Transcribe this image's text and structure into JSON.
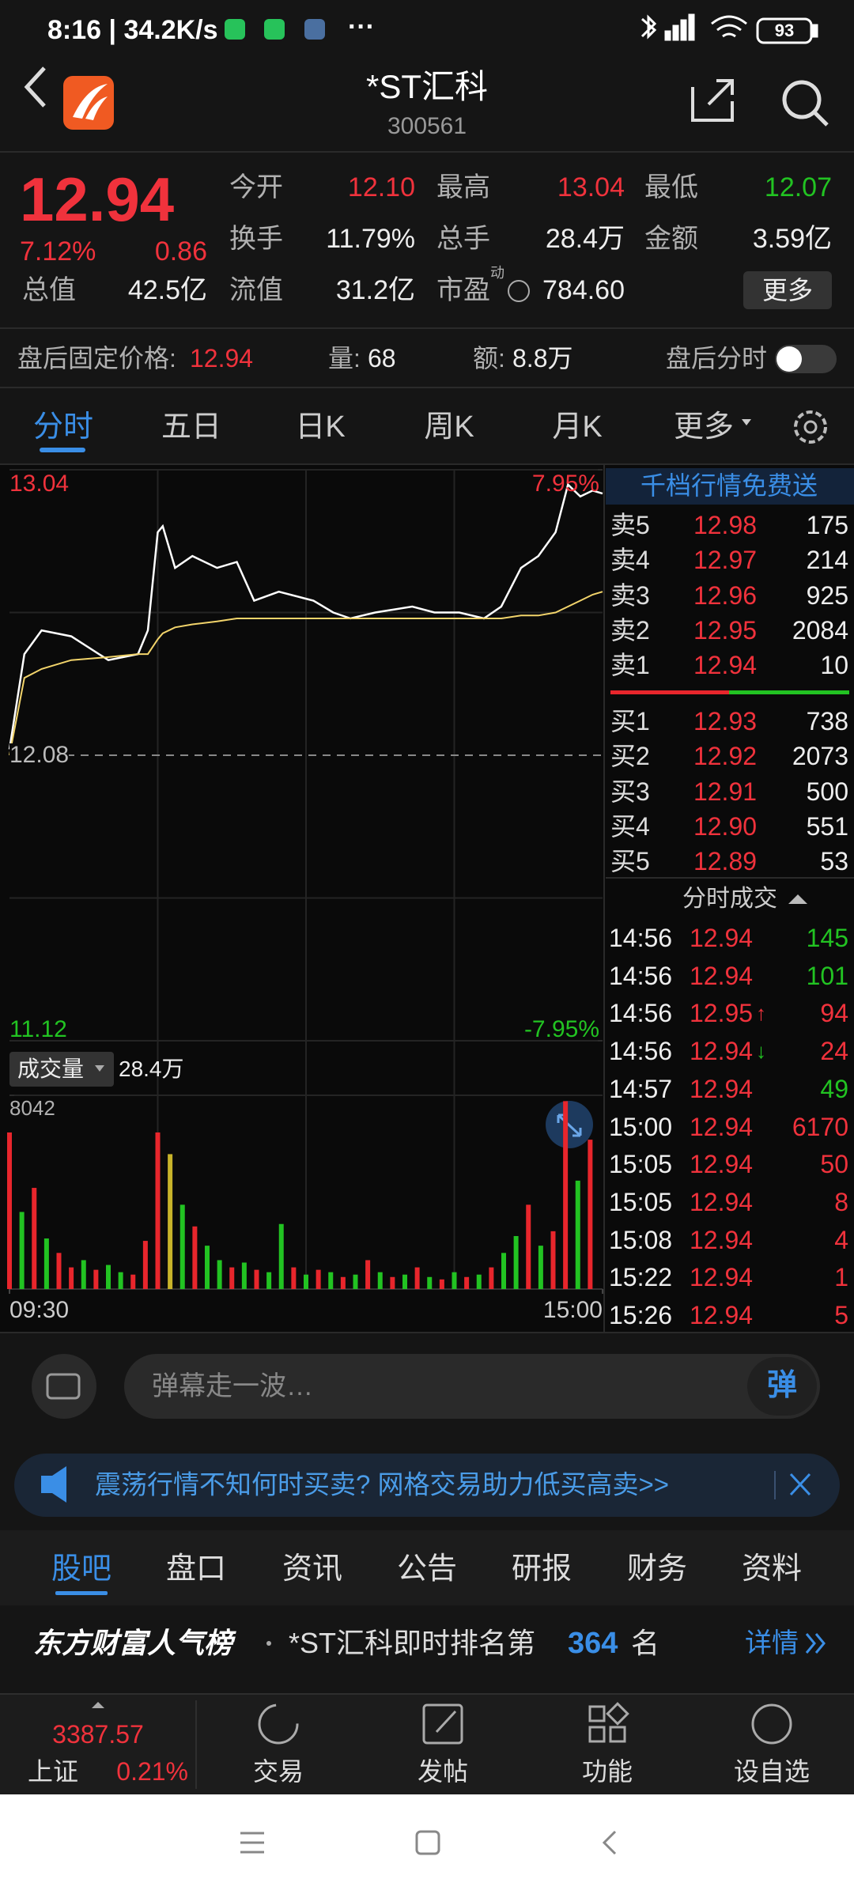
{
  "status_bar": {
    "time": "8:16 | 34.2K/s",
    "more": "···",
    "battery": "93"
  },
  "header": {
    "title": "*ST汇科",
    "code": "300561"
  },
  "quote": {
    "price": "12.94",
    "change_pct": "7.12%",
    "change": "0.86",
    "market_cap_label": "总值",
    "market_cap": "42.5亿",
    "fields": [
      {
        "label": "今开",
        "value": "12.10",
        "color": "#f0323c"
      },
      {
        "label": "最高",
        "value": "13.04",
        "color": "#f0323c"
      },
      {
        "label": "最低",
        "value": "12.07",
        "color": "#22c322"
      },
      {
        "label": "换手",
        "value": "11.79%",
        "color": "#eeeeee"
      },
      {
        "label": "总手",
        "value": "28.4万",
        "color": "#eeeeee"
      },
      {
        "label": "金额",
        "value": "3.59亿",
        "color": "#eeeeee"
      },
      {
        "label": "流值",
        "value": "31.2亿",
        "color": "#eeeeee"
      }
    ],
    "pe_label": "市盈",
    "pe_tag": "动",
    "pe": "784.60",
    "more": "更多"
  },
  "after_hours": {
    "label": "盘后固定价格:",
    "price": "12.94",
    "volume_label": "量:",
    "volume": "68",
    "amount_label": "额:",
    "amount": "8.8万",
    "toggle": "盘后分时"
  },
  "tabs": {
    "items": [
      "分时",
      "五日",
      "日K",
      "周K",
      "月K",
      "更多"
    ],
    "active": 0
  },
  "chart_data": [
    {
      "type": "line",
      "xlim": [
        0,
        240
      ],
      "ylim": [
        11.12,
        13.04
      ],
      "yticks": [
        13.04,
        12.08,
        11.12
      ],
      "ytick_colors": [
        "#f0323c",
        "#bbbbbb",
        "#22c322"
      ],
      "y2lim": [
        -7.95,
        7.95
      ],
      "y2ticks": [
        {
          "value": 7.95,
          "label": "7.95%"
        },
        {
          "value": -7.95,
          "label": "-7.95%"
        }
      ],
      "y2tick_colors": [
        "#f0323c",
        "#22c322"
      ],
      "grid": true,
      "x": [
        0,
        6,
        13,
        25,
        40,
        52,
        56,
        60,
        62,
        67,
        74,
        84,
        92,
        99,
        109,
        123,
        131,
        138,
        148,
        163,
        172,
        182,
        192,
        199,
        207,
        214,
        221,
        226,
        231,
        236,
        240
      ],
      "series": [
        {
          "color": "#ffffff",
          "values": [
            12.1,
            12.42,
            12.5,
            12.48,
            12.4,
            12.42,
            12.5,
            12.83,
            12.85,
            12.71,
            12.75,
            12.71,
            12.73,
            12.6,
            12.63,
            12.6,
            12.56,
            12.54,
            12.56,
            12.58,
            12.56,
            12.56,
            12.54,
            12.58,
            12.71,
            12.75,
            12.83,
            12.99,
            12.95,
            12.97,
            12.96
          ]
        },
        {
          "color": "#f2d46b",
          "values": [
            12.08,
            12.34,
            12.37,
            12.4,
            12.41,
            12.42,
            12.42,
            12.47,
            12.49,
            12.51,
            12.52,
            12.53,
            12.54,
            12.54,
            12.54,
            12.54,
            12.54,
            12.54,
            12.54,
            12.54,
            12.54,
            12.54,
            12.54,
            12.54,
            12.55,
            12.55,
            12.56,
            12.58,
            12.6,
            12.62,
            12.63
          ]
        }
      ]
    },
    {
      "type": "bar",
      "title": "成交量",
      "total": "28.4万",
      "xlim": [
        0,
        240
      ],
      "ylim": [
        0,
        8042
      ],
      "yticks": [
        8042
      ],
      "xticks": [
        {
          "value": 0,
          "label": "09:30"
        },
        {
          "value": 240,
          "label": "15:00"
        }
      ],
      "x": [
        0,
        5,
        10,
        15,
        20,
        25,
        30,
        35,
        40,
        45,
        50,
        55,
        60,
        65,
        70,
        75,
        80,
        85,
        90,
        95,
        100,
        105,
        110,
        115,
        120,
        125,
        130,
        135,
        140,
        145,
        150,
        155,
        160,
        165,
        170,
        175,
        180,
        185,
        190,
        195,
        200,
        205,
        210,
        215,
        220,
        225,
        230,
        235
      ],
      "values": [
        6500,
        3200,
        4200,
        2100,
        1500,
        900,
        1200,
        800,
        1000,
        700,
        600,
        2000,
        6500,
        5600,
        3500,
        2600,
        1800,
        1200,
        900,
        1100,
        800,
        700,
        2700,
        900,
        600,
        800,
        700,
        500,
        600,
        1200,
        700,
        500,
        600,
        900,
        500,
        400,
        700,
        500,
        600,
        900,
        1500,
        2200,
        3500,
        1800,
        2400,
        7800,
        4500,
        6200
      ],
      "colors": [
        "#e8262c",
        "#22c322",
        "#e8262c",
        "#22c322",
        "#e8262c",
        "#e8262c",
        "#22c322",
        "#e8262c",
        "#22c322",
        "#22c322",
        "#e8262c",
        "#e8262c",
        "#e8262c",
        "#c8b42a",
        "#22c322",
        "#e8262c",
        "#22c322",
        "#22c322",
        "#e8262c",
        "#22c322",
        "#e8262c",
        "#22c322",
        "#22c322",
        "#e8262c",
        "#22c322",
        "#e8262c",
        "#22c322",
        "#e8262c",
        "#22c322",
        "#e8262c",
        "#22c322",
        "#e8262c",
        "#22c322",
        "#e8262c",
        "#22c322",
        "#e8262c",
        "#22c322",
        "#e8262c",
        "#22c322",
        "#e8262c",
        "#22c322",
        "#22c322",
        "#e8262c",
        "#22c322",
        "#e8262c",
        "#e8262c",
        "#22c322",
        "#e8262c"
      ]
    }
  ],
  "order_book": {
    "title": "千档行情免费送",
    "asks": [
      {
        "label": "卖5",
        "price": "12.98",
        "volume": "175"
      },
      {
        "label": "卖4",
        "price": "12.97",
        "volume": "214"
      },
      {
        "label": "卖3",
        "price": "12.96",
        "volume": "925"
      },
      {
        "label": "卖2",
        "price": "12.95",
        "volume": "2084"
      },
      {
        "label": "卖1",
        "price": "12.94",
        "volume": "10"
      }
    ],
    "bids": [
      {
        "label": "买1",
        "price": "12.93",
        "volume": "738"
      },
      {
        "label": "买2",
        "price": "12.92",
        "volume": "2073"
      },
      {
        "label": "买3",
        "price": "12.91",
        "volume": "500"
      },
      {
        "label": "买4",
        "price": "12.90",
        "volume": "551"
      },
      {
        "label": "买5",
        "price": "12.89",
        "volume": "53"
      }
    ],
    "trades_title": "分时成交",
    "trades": [
      {
        "time": "14:56",
        "price": "12.94",
        "volume": "145",
        "color": "#22c322"
      },
      {
        "time": "14:56",
        "price": "12.94",
        "volume": "101",
        "color": "#22c322"
      },
      {
        "time": "14:56",
        "price": "12.95",
        "arrow": "↑",
        "arrow_color": "#f0323c",
        "volume": "94",
        "color": "#f0323c"
      },
      {
        "time": "14:56",
        "price": "12.94",
        "arrow": "↓",
        "arrow_color": "#22c322",
        "volume": "24",
        "color": "#f0323c"
      },
      {
        "time": "14:57",
        "price": "12.94",
        "volume": "49",
        "color": "#22c322"
      },
      {
        "time": "15:00",
        "price": "12.94",
        "volume": "6170",
        "color": "#f0323c"
      },
      {
        "time": "15:05",
        "price": "12.94",
        "volume": "50",
        "color": "#f0323c"
      },
      {
        "time": "15:05",
        "price": "12.94",
        "volume": "8",
        "color": "#f0323c"
      },
      {
        "time": "15:08",
        "price": "12.94",
        "volume": "4",
        "color": "#f0323c"
      },
      {
        "time": "15:22",
        "price": "12.94",
        "volume": "1",
        "color": "#f0323c"
      },
      {
        "time": "15:26",
        "price": "12.94",
        "volume": "5",
        "color": "#f0323c"
      }
    ]
  },
  "danmaku": {
    "placeholder": "弹幕走一波…",
    "button": "弹"
  },
  "banner": "震荡行情不知何时买卖? 网格交易助力低买高卖>>",
  "info_tabs": {
    "items": [
      "股吧",
      "盘口",
      "资讯",
      "公告",
      "研报",
      "财务",
      "资料"
    ],
    "active": 0
  },
  "ranking": {
    "brand": "东方财富人气榜",
    "text": "*ST汇科即时排名第",
    "rank": "364",
    "suffix": "名",
    "link": "详情"
  },
  "bottom_nav": {
    "index_value": "3387.57",
    "index_name": "上证",
    "index_pct": "0.21%",
    "items": [
      "交易",
      "发帖",
      "功能",
      "设自选"
    ]
  }
}
